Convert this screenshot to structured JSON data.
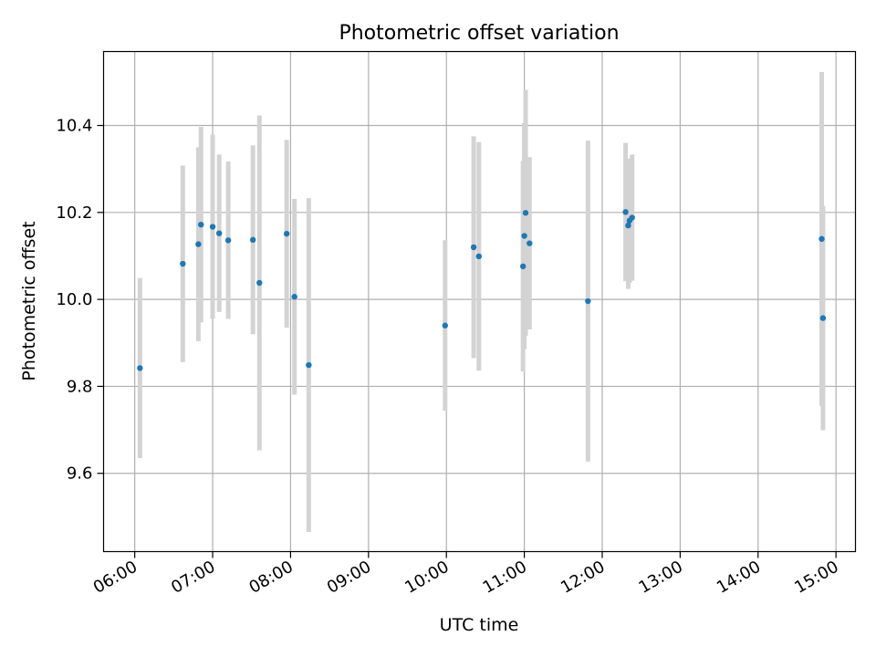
{
  "chart_data": {
    "type": "scatter",
    "title": "Photometric offset variation",
    "xlabel": "UTC time",
    "ylabel": "Photometric offset",
    "x_ticks": [
      "06:00",
      "07:00",
      "08:00",
      "09:00",
      "10:00",
      "11:00",
      "12:00",
      "13:00",
      "14:00",
      "15:00"
    ],
    "y_ticks": [
      "9.6",
      "9.8",
      "10.0",
      "10.2",
      "10.4"
    ],
    "xlim": [
      "05:36",
      "15:15"
    ],
    "ylim": [
      9.42,
      10.57
    ],
    "grid": true,
    "colors": {
      "points": "#1f77b4",
      "errorbars": "#d3d3d3",
      "grid": "#b0b0b0"
    },
    "points": [
      {
        "t": "06:04",
        "y": 9.842,
        "err": 0.207
      },
      {
        "t": "06:37",
        "y": 10.082,
        "err": 0.226
      },
      {
        "t": "06:49",
        "y": 10.127,
        "err": 0.223
      },
      {
        "t": "06:51",
        "y": 10.172,
        "err": 0.225
      },
      {
        "t": "07:00",
        "y": 10.167,
        "err": 0.212
      },
      {
        "t": "07:05",
        "y": 10.152,
        "err": 0.181
      },
      {
        "t": "07:12",
        "y": 10.136,
        "err": 0.181
      },
      {
        "t": "07:31",
        "y": 10.137,
        "err": 0.217
      },
      {
        "t": "07:36",
        "y": 10.038,
        "err": 0.385
      },
      {
        "t": "07:57",
        "y": 10.151,
        "err": 0.216
      },
      {
        "t": "08:03",
        "y": 10.006,
        "err": 0.225
      },
      {
        "t": "08:14",
        "y": 9.849,
        "err": 0.384
      },
      {
        "t": "09:59",
        "y": 9.94,
        "err": 0.196
      },
      {
        "t": "10:21",
        "y": 10.12,
        "err": 0.255
      },
      {
        "t": "10:25",
        "y": 10.099,
        "err": 0.263
      },
      {
        "t": "10:59",
        "y": 10.076,
        "err": 0.242
      },
      {
        "t": "11:00",
        "y": 10.146,
        "err": 0.26
      },
      {
        "t": "11:01",
        "y": 10.199,
        "err": 0.283
      },
      {
        "t": "11:04",
        "y": 10.129,
        "err": 0.198
      },
      {
        "t": "11:49",
        "y": 9.996,
        "err": 0.369
      },
      {
        "t": "12:18",
        "y": 10.201,
        "err": 0.159
      },
      {
        "t": "12:20",
        "y": 10.17,
        "err": 0.146
      },
      {
        "t": "12:21",
        "y": 10.181,
        "err": 0.143
      },
      {
        "t": "12:23",
        "y": 10.188,
        "err": 0.145
      },
      {
        "t": "14:49",
        "y": 10.139,
        "err": 0.384
      },
      {
        "t": "14:50",
        "y": 9.957,
        "err": 0.258
      }
    ]
  }
}
